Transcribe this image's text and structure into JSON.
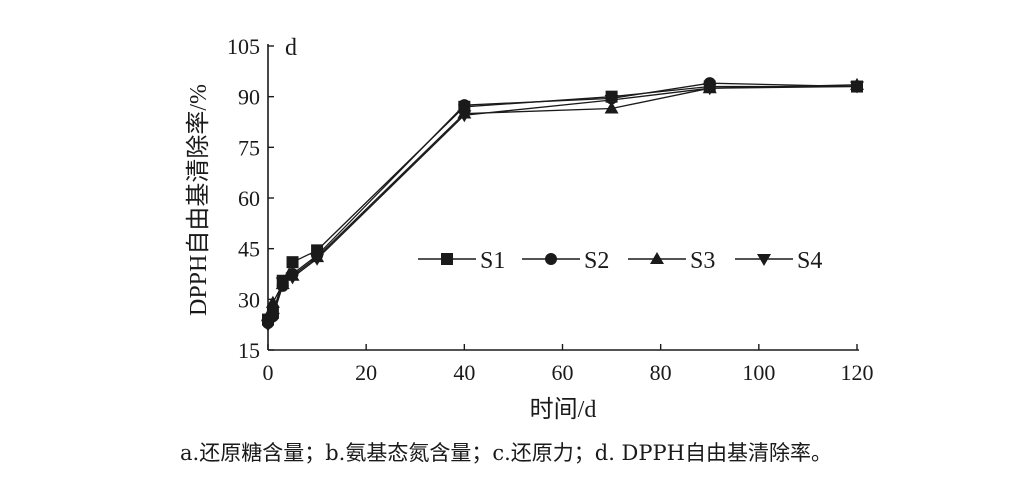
{
  "chart_data": {
    "type": "line",
    "panel_label": "d",
    "xlabel": "时间/d",
    "ylabel": "DPPH自由基清除率/%",
    "xlim": [
      0,
      120
    ],
    "ylim": [
      15,
      105
    ],
    "xticks": [
      0,
      20,
      40,
      60,
      80,
      100,
      120
    ],
    "yticks": [
      15,
      30,
      45,
      60,
      75,
      90,
      105
    ],
    "x": [
      0,
      1,
      3,
      5,
      10,
      40,
      70,
      90,
      120
    ],
    "series": [
      {
        "name": "S1",
        "marker": "square",
        "values": [
          24,
          26,
          35.5,
          41,
          44.5,
          87,
          90,
          93,
          93
        ]
      },
      {
        "name": "S2",
        "marker": "circle",
        "values": [
          23,
          25,
          34,
          37.5,
          43,
          87.5,
          89.5,
          94,
          93
        ]
      },
      {
        "name": "S3",
        "marker": "triangle-up",
        "values": [
          25,
          29,
          34.5,
          37,
          42.5,
          85,
          86.5,
          92.5,
          93.5
        ]
      },
      {
        "name": "S4",
        "marker": "triangle-down",
        "values": [
          22.5,
          24.5,
          35,
          36.5,
          42,
          84.5,
          89,
          92.5,
          93
        ]
      }
    ],
    "legend_position": "inside-right",
    "grid": false,
    "line_color": "#1a1a1a"
  },
  "caption": "a.还原糖含量；b.氨基态氮含量；c.还原力；d. DPPH自由基清除率。"
}
